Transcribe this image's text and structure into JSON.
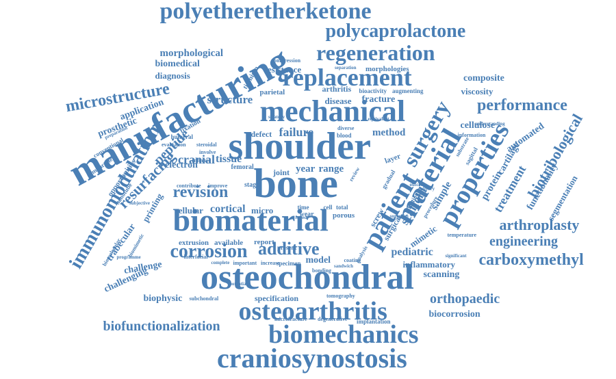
{
  "word_color": "#4a7fb5",
  "words": [
    "polyetheretherketone",
    "polycaprolactone",
    "regeneration",
    "replacement",
    "manufacturing",
    "mechanical",
    "shoulder",
    "bone",
    "biomaterial",
    "osteochondral",
    "osteoarthritis",
    "biomechanics",
    "craniosynostosis",
    "immunomodulation",
    "properties",
    "patient",
    "material",
    "surgery",
    "corrosion",
    "revision",
    "additive",
    "arthroplasty",
    "carboxymethyl",
    "engineering",
    "orthopaedic",
    "biotribological",
    "microstructure",
    "performance",
    "resurfacing",
    "biofunctionalization",
    "biocorrosion",
    "morphological",
    "biomedical",
    "diagnosis",
    "application",
    "prosthetic",
    "composite",
    "viscosity",
    "cellulose",
    "structure",
    "disease",
    "fracture",
    "failure",
    "method",
    "cranial",
    "tissue",
    "year",
    "range",
    "joint",
    "peptide",
    "electron",
    "cortical",
    "micro",
    "scaffold",
    "sample",
    "protein",
    "treatment",
    "cartilage",
    "functionality",
    "segmentation",
    "automated",
    "pediatric",
    "mimetic",
    "inflammatory",
    "scanning",
    "challenge",
    "challenging",
    "biophysic",
    "specification",
    "model",
    "extrusion",
    "available",
    "report",
    "printing",
    "opportunities",
    "trabecular",
    "cellular",
    "resistance",
    "morphologies",
    "parietal",
    "arthritis",
    "bioactivity",
    "augmenting",
    "titanium",
    "defect",
    "humeral",
    "fixation",
    "subchondral",
    "degenerative",
    "microfracture",
    "implantation",
    "tomography",
    "surgical",
    "screw",
    "porous",
    "total",
    "wear",
    "time",
    "cell",
    "layer",
    "blood",
    "diverse",
    "femoral",
    "stage",
    "contribute",
    "improve",
    "compression",
    "separation",
    "understanding",
    "information",
    "temperature",
    "significant",
    "subjective",
    "nanotube",
    "conventional",
    "compartment",
    "preparation",
    "biomolecular",
    "biomimetic",
    "programme",
    "interfacial",
    "complete",
    "important",
    "increase",
    "specimen",
    "bonding",
    "sandwich",
    "coating",
    "present",
    "analysis",
    "potential",
    "evaluation",
    "enhance",
    "involve",
    "steroidal",
    "strategy",
    "equivalent",
    "outcome",
    "delivery",
    "surgeries",
    "infection",
    "procedure",
    "gradual",
    "substrate",
    "sagittal",
    "failed",
    "review"
  ]
}
